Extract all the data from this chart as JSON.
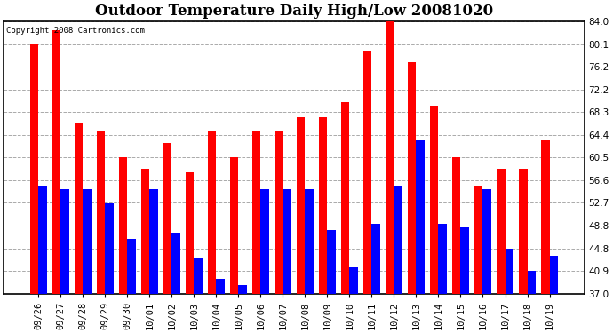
{
  "title": "Outdoor Temperature Daily High/Low 20081020",
  "copyright": "Copyright 2008 Cartronics.com",
  "dates": [
    "09/26",
    "09/27",
    "09/28",
    "09/29",
    "09/30",
    "10/01",
    "10/02",
    "10/03",
    "10/04",
    "10/05",
    "10/06",
    "10/07",
    "10/08",
    "10/09",
    "10/10",
    "10/11",
    "10/12",
    "10/13",
    "10/14",
    "10/15",
    "10/16",
    "10/17",
    "10/18",
    "10/19"
  ],
  "highs": [
    80.1,
    82.5,
    66.5,
    65.0,
    60.5,
    58.5,
    63.0,
    58.0,
    65.0,
    60.5,
    65.0,
    65.0,
    67.5,
    67.5,
    70.0,
    79.0,
    84.0,
    77.0,
    69.5,
    60.5,
    55.5,
    58.5,
    58.5,
    63.5
  ],
  "lows": [
    55.5,
    55.0,
    55.0,
    52.5,
    46.5,
    55.0,
    47.5,
    43.0,
    39.5,
    38.5,
    55.0,
    55.0,
    55.0,
    48.0,
    41.5,
    49.0,
    55.5,
    63.5,
    49.0,
    48.5,
    55.0,
    44.8,
    40.9,
    43.5
  ],
  "high_color": "#ff0000",
  "low_color": "#0000ff",
  "background_color": "#ffffff",
  "plot_bg_color": "#ffffff",
  "ymin": 37.0,
  "ymax": 84.0,
  "yticks": [
    37.0,
    40.9,
    44.8,
    48.8,
    52.7,
    56.6,
    60.5,
    64.4,
    68.3,
    72.2,
    76.2,
    80.1,
    84.0
  ],
  "bar_width": 0.38,
  "title_fontsize": 12,
  "tick_fontsize": 7.5,
  "copyright_fontsize": 6.5
}
